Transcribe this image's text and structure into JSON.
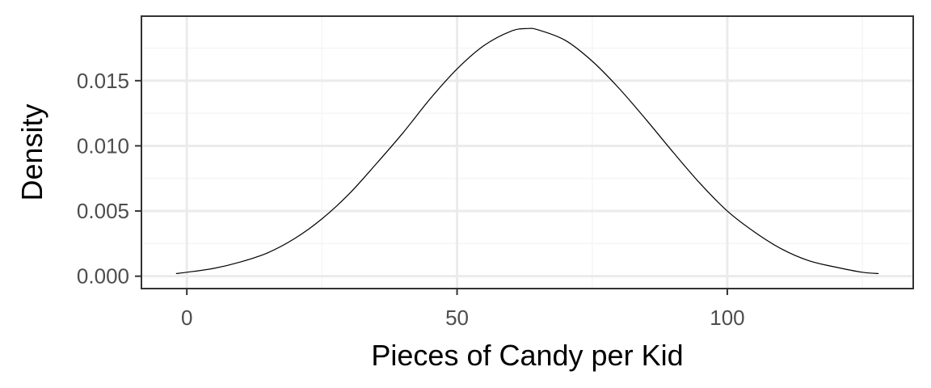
{
  "chart_data": {
    "type": "line",
    "title": "",
    "xlabel": "Pieces of Candy per Kid",
    "ylabel": "Density",
    "xlim": [
      -8.4,
      134.4
    ],
    "ylim": [
      -0.00095,
      0.01995
    ],
    "x_ticks": [
      0,
      50,
      100
    ],
    "x_tick_labels": [
      "0",
      "50",
      "100"
    ],
    "x_minor_ticks": [
      25,
      75,
      125
    ],
    "y_ticks": [
      0.0,
      0.005,
      0.01,
      0.015
    ],
    "y_tick_labels": [
      "0.000",
      "0.005",
      "0.010",
      "0.015"
    ],
    "y_minor_ticks": [
      0.0025,
      0.0075,
      0.0125,
      0.0175
    ],
    "grid": true,
    "series": [
      {
        "x": [
          -2,
          0,
          5,
          10,
          15,
          20,
          25,
          30,
          35,
          40,
          45,
          50,
          55,
          60,
          63,
          65,
          70,
          75,
          80,
          85,
          90,
          95,
          100,
          105,
          110,
          115,
          120,
          125,
          128
        ],
        "y": [
          0.0002,
          0.0003,
          0.0006,
          0.0011,
          0.0018,
          0.0029,
          0.0044,
          0.0063,
          0.0086,
          0.011,
          0.0136,
          0.0159,
          0.0177,
          0.0188,
          0.019,
          0.0189,
          0.0181,
          0.0165,
          0.0144,
          0.012,
          0.0095,
          0.0071,
          0.005,
          0.0034,
          0.0021,
          0.0012,
          0.0007,
          0.0003,
          0.0002
        ]
      }
    ],
    "colors": {
      "line": "#000000",
      "panel_border": "#333333",
      "grid_major": "#ebebeb",
      "grid_minor": "#f5f5f5",
      "tick_text": "#4d4d4d"
    }
  }
}
